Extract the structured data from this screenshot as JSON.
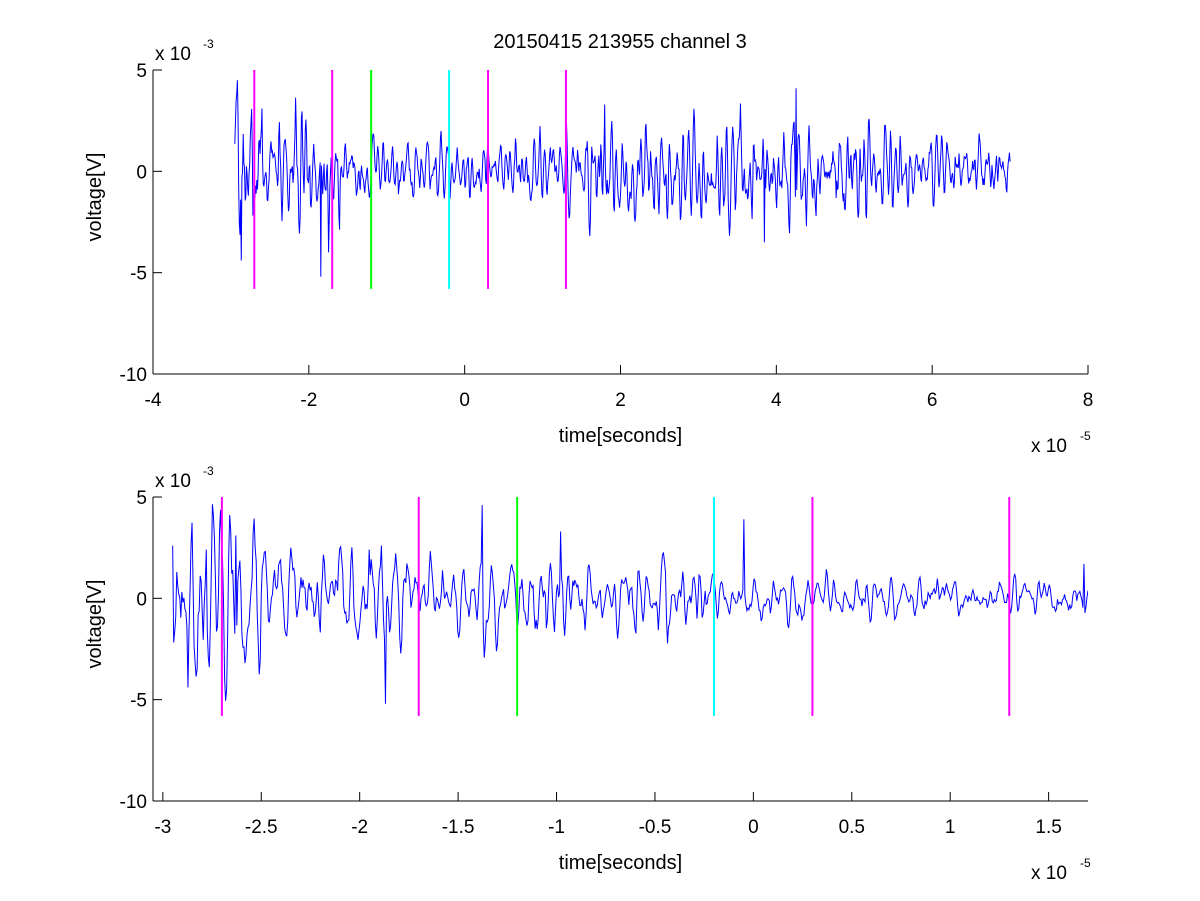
{
  "figure": {
    "title": "20150415 213955 channel 3"
  },
  "chart_data": [
    {
      "type": "line",
      "title": "20150415 213955 channel 3",
      "xlabel": "time[seconds]",
      "ylabel": "voltage[V]",
      "x_multiplier_label": "x 10",
      "x_multiplier_exp": "-5",
      "y_multiplier_label": "x 10",
      "y_multiplier_exp": "-3",
      "xlim": [
        -4,
        8
      ],
      "ylim": [
        -10,
        5
      ],
      "xticks": [
        -4,
        -2,
        0,
        2,
        4,
        6,
        8
      ],
      "xtick_labels": [
        "-4",
        "-2",
        "0",
        "2",
        "4",
        "6",
        "8"
      ],
      "yticks": [
        -10,
        -5,
        0,
        5
      ],
      "ytick_labels": [
        "-10",
        "-5",
        "0",
        "5"
      ],
      "series": [
        {
          "color": "#0000ff",
          "x_range": [
            -2.95,
            7.0
          ],
          "envelope_segments": [
            {
              "x": [
                -2.95,
                -2.6
              ],
              "amplitude": 3.2
            },
            {
              "x": [
                -2.6,
                -1.6
              ],
              "amplitude": 2.2
            },
            {
              "x": [
                -1.6,
                1.5
              ],
              "amplitude": 1.2
            },
            {
              "x": [
                1.5,
                5.5
              ],
              "amplitude": 2.0
            },
            {
              "x": [
                5.5,
                7.0
              ],
              "amplitude": 1.3
            }
          ],
          "spikes": [
            [
              -2.87,
              -4.4
            ],
            [
              -2.6,
              3.1
            ],
            [
              -1.85,
              -5.2
            ],
            [
              -1.75,
              -4.0
            ],
            [
              1.8,
              3.3
            ],
            [
              3.85,
              -3.5
            ],
            [
              4.25,
              4.1
            ]
          ]
        }
      ],
      "vlines": [
        {
          "x": -2.7,
          "y": [
            -5.8,
            5.0
          ],
          "color": "#ff00ff"
        },
        {
          "x": -1.7,
          "y": [
            -5.8,
            5.0
          ],
          "color": "#ff00ff"
        },
        {
          "x": -1.2,
          "y": [
            -5.8,
            5.0
          ],
          "color": "#00ff00"
        },
        {
          "x": -0.2,
          "y": [
            -5.8,
            5.0
          ],
          "color": "#00ffff"
        },
        {
          "x": 0.3,
          "y": [
            -5.8,
            5.0
          ],
          "color": "#ff00ff"
        },
        {
          "x": 1.3,
          "y": [
            -5.8,
            5.0
          ],
          "color": "#ff00ff"
        }
      ],
      "grid": false,
      "legend": "none"
    },
    {
      "type": "line",
      "title": "",
      "xlabel": "time[seconds]",
      "ylabel": "voltage[V]",
      "x_multiplier_label": "x 10",
      "x_multiplier_exp": "-5",
      "y_multiplier_label": "x 10",
      "y_multiplier_exp": "-3",
      "xlim": [
        -3.05,
        1.7
      ],
      "ylim": [
        -10,
        5
      ],
      "xticks": [
        -3,
        -2.5,
        -2,
        -1.5,
        -1,
        -0.5,
        0,
        0.5,
        1,
        1.5
      ],
      "xtick_labels": [
        "-3",
        "-2.5",
        "-2",
        "-1.5",
        "-1",
        "-0.5",
        "0",
        "0.5",
        "1",
        "1.5"
      ],
      "yticks": [
        -10,
        -5,
        0,
        5
      ],
      "ytick_labels": [
        "-10",
        "-5",
        "0",
        "5"
      ],
      "series": [
        {
          "color": "#0000ff",
          "x_range": [
            -2.95,
            1.7
          ],
          "envelope_segments": [
            {
              "x": [
                -2.95,
                -2.5
              ],
              "amplitude": 2.8
            },
            {
              "x": [
                -2.5,
                -1.7
              ],
              "amplitude": 1.8
            },
            {
              "x": [
                -1.7,
                -0.2
              ],
              "amplitude": 1.5
            },
            {
              "x": [
                -0.2,
                1.7
              ],
              "amplitude": 0.8
            }
          ],
          "spikes": [
            [
              -2.95,
              2.6
            ],
            [
              -2.87,
              -4.4
            ],
            [
              -2.78,
              2.4
            ],
            [
              -2.63,
              3.1
            ],
            [
              -1.95,
              2.4
            ],
            [
              -1.87,
              -5.2
            ],
            [
              -1.38,
              4.6
            ],
            [
              -0.98,
              3.3
            ],
            [
              -0.05,
              3.9
            ],
            [
              1.68,
              1.7
            ]
          ]
        }
      ],
      "vlines": [
        {
          "x": -2.7,
          "y": [
            -5.8,
            5.0
          ],
          "color": "#ff00ff"
        },
        {
          "x": -1.7,
          "y": [
            -5.8,
            5.0
          ],
          "color": "#ff00ff"
        },
        {
          "x": -1.2,
          "y": [
            -5.8,
            5.0
          ],
          "color": "#00ff00"
        },
        {
          "x": -0.2,
          "y": [
            -5.8,
            5.0
          ],
          "color": "#00ffff"
        },
        {
          "x": 0.3,
          "y": [
            -5.8,
            5.0
          ],
          "color": "#ff00ff"
        },
        {
          "x": 1.3,
          "y": [
            -5.8,
            5.0
          ],
          "color": "#ff00ff"
        }
      ],
      "grid": false,
      "legend": "none"
    }
  ]
}
